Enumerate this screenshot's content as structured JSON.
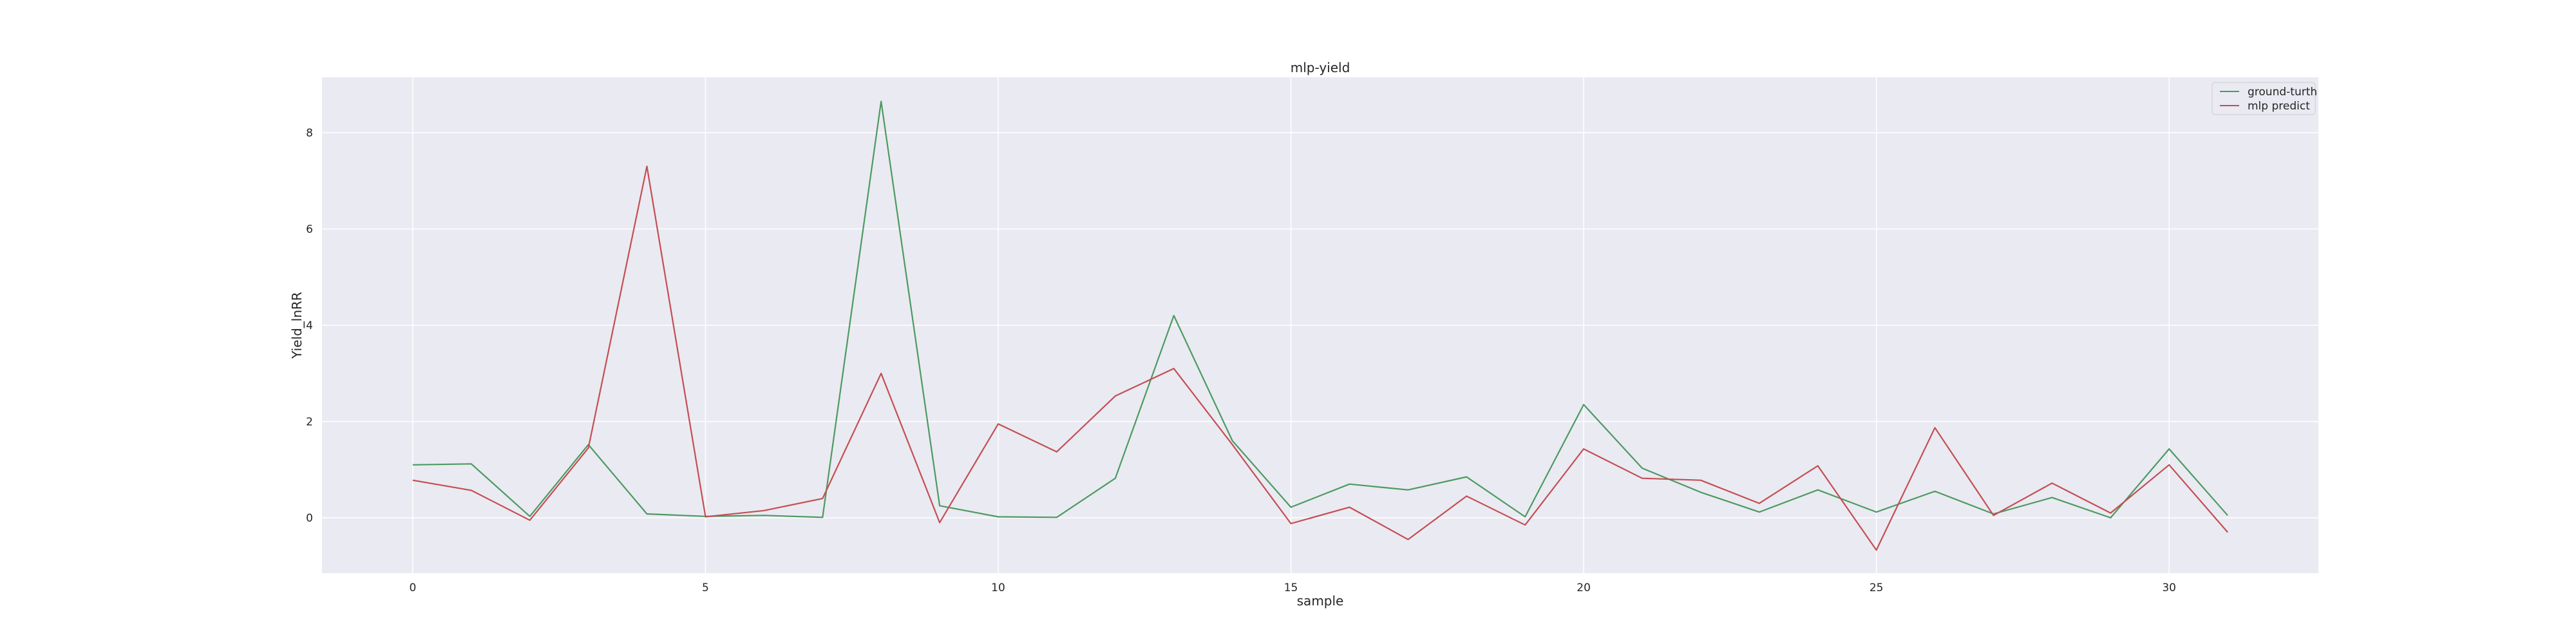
{
  "chart_data": {
    "type": "line",
    "title": "mlp-yield",
    "xlabel": "sample",
    "ylabel": "Yield_lnRR",
    "xlim": [
      -1.55,
      32.55
    ],
    "ylim": [
      -1.15,
      9.15
    ],
    "xticks": [
      0,
      5,
      10,
      15,
      20,
      25,
      30
    ],
    "yticks": [
      0,
      2,
      4,
      6,
      8
    ],
    "grid": true,
    "legend_position": "top-right",
    "x": [
      0,
      1,
      2,
      3,
      4,
      5,
      6,
      7,
      8,
      9,
      10,
      11,
      12,
      13,
      14,
      15,
      16,
      17,
      18,
      19,
      20,
      21,
      22,
      23,
      24,
      25,
      26,
      27,
      28,
      29,
      30,
      31
    ],
    "series": [
      {
        "name": "ground-turth",
        "color": "#4c9a60",
        "values": [
          1.1,
          1.12,
          0.03,
          1.52,
          0.08,
          0.03,
          0.05,
          0.01,
          8.65,
          0.25,
          0.02,
          0.01,
          0.82,
          4.2,
          1.6,
          0.22,
          0.7,
          0.58,
          0.85,
          0.02,
          2.35,
          1.03,
          0.53,
          0.12,
          0.58,
          0.12,
          0.55,
          0.08,
          0.42,
          0.0,
          1.43,
          0.05
        ]
      },
      {
        "name": "mlp predict",
        "color": "#c44e52",
        "values": [
          0.78,
          0.57,
          -0.05,
          1.45,
          7.3,
          0.02,
          0.15,
          0.4,
          3.0,
          -0.1,
          1.95,
          1.37,
          2.53,
          3.1,
          1.52,
          -0.12,
          0.22,
          -0.45,
          0.45,
          -0.15,
          1.43,
          0.82,
          0.78,
          0.3,
          1.08,
          -0.67,
          1.87,
          0.05,
          0.72,
          0.1,
          1.1,
          -0.3
        ]
      }
    ]
  }
}
